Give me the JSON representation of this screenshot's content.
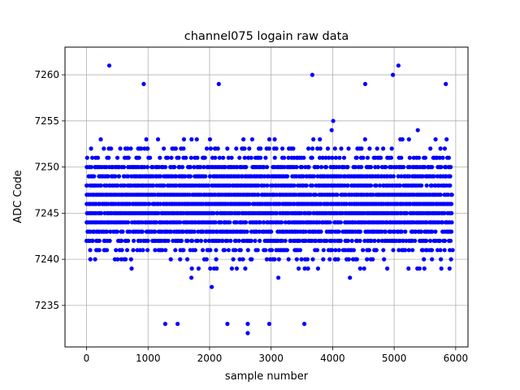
{
  "chart_data": {
    "type": "scatter",
    "title": "channel075 logain raw data",
    "xlabel": "sample number",
    "ylabel": "ADC Code",
    "xlim": [
      -350,
      6200
    ],
    "ylim": [
      7230.5,
      7263
    ],
    "xticks": [
      0,
      1000,
      2000,
      3000,
      4000,
      5000,
      6000
    ],
    "yticks": [
      7235,
      7240,
      7245,
      7250,
      7255,
      7260
    ],
    "xtick_labels": [
      "0",
      "1000",
      "2000",
      "3000",
      "4000",
      "5000",
      "6000"
    ],
    "ytick_labels": [
      "7235",
      "7240",
      "7245",
      "7250",
      "7255",
      "7260"
    ],
    "grid": true,
    "marker_color": "#0000ff",
    "series": [
      {
        "x_range": [
          0,
          5950
        ],
        "integer_levels": true,
        "dense_band": [
          7238,
          7254
        ],
        "notable_points": [
          {
            "x": 370,
            "y": 7261
          },
          {
            "x": 5070,
            "y": 7261
          },
          {
            "x": 3670,
            "y": 7260
          },
          {
            "x": 4980,
            "y": 7260
          },
          {
            "x": 930,
            "y": 7259
          },
          {
            "x": 2150,
            "y": 7259
          },
          {
            "x": 4530,
            "y": 7259
          },
          {
            "x": 5840,
            "y": 7259
          },
          {
            "x": 2620,
            "y": 7232
          },
          {
            "x": 2620,
            "y": 7233
          },
          {
            "x": 1280,
            "y": 7233
          },
          {
            "x": 1480,
            "y": 7233
          },
          {
            "x": 2290,
            "y": 7233
          },
          {
            "x": 2970,
            "y": 7233
          },
          {
            "x": 3540,
            "y": 7233
          }
        ]
      }
    ]
  }
}
